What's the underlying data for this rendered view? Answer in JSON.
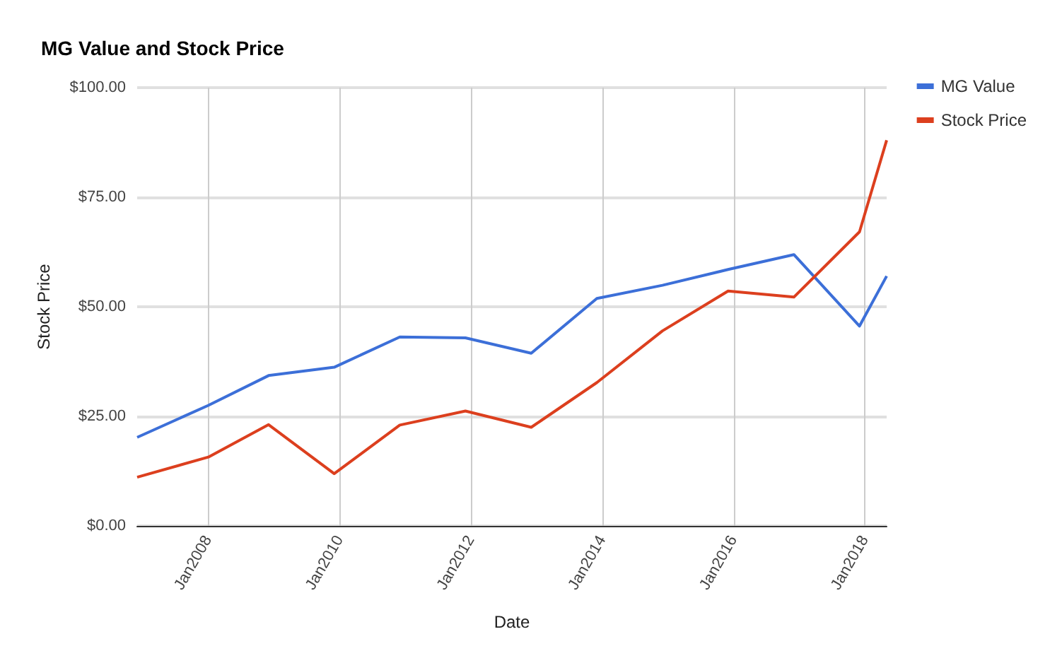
{
  "chart_data": {
    "type": "line",
    "title": "MG Value and Stock Price",
    "xlabel": "Date",
    "ylabel": "Stock Price",
    "x": [
      "2006-12",
      "2008-01",
      "2008-12",
      "2009-12",
      "2010-12",
      "2011-12",
      "2012-12",
      "2013-12",
      "2014-12",
      "2015-12",
      "2016-12",
      "2017-12",
      "2018-05"
    ],
    "series": [
      {
        "name": "MG Value",
        "color": "#3c6fd8",
        "values": [
          20.2,
          27.5,
          34.3,
          36.2,
          43.1,
          42.9,
          39.4,
          51.9,
          54.9,
          58.5,
          61.9,
          45.6,
          57.0
        ]
      },
      {
        "name": "Stock Price",
        "color": "#dc3f1e",
        "values": [
          11.1,
          15.7,
          23.1,
          11.9,
          23.0,
          26.2,
          22.5,
          32.7,
          44.5,
          53.6,
          52.2,
          67.1,
          88.0
        ]
      }
    ],
    "xlim": [
      "2006-12",
      "2018-05"
    ],
    "xticks": [
      {
        "value": "2008-01",
        "label": "Jan2008"
      },
      {
        "value": "2010-01",
        "label": "Jan2010"
      },
      {
        "value": "2012-01",
        "label": "Jan2012"
      },
      {
        "value": "2014-01",
        "label": "Jan2014"
      },
      {
        "value": "2016-01",
        "label": "Jan2016"
      },
      {
        "value": "2018-01",
        "label": "Jan2018"
      }
    ],
    "ylim": [
      0,
      100
    ],
    "yticks": [
      {
        "value": 0,
        "label": "$0.00"
      },
      {
        "value": 25,
        "label": "$25.00"
      },
      {
        "value": 50,
        "label": "$50.00"
      },
      {
        "value": 75,
        "label": "$75.00"
      },
      {
        "value": 100,
        "label": "$100.00"
      }
    ],
    "grid": true,
    "legend": "top right",
    "marker": "none",
    "line_style": "solid"
  }
}
